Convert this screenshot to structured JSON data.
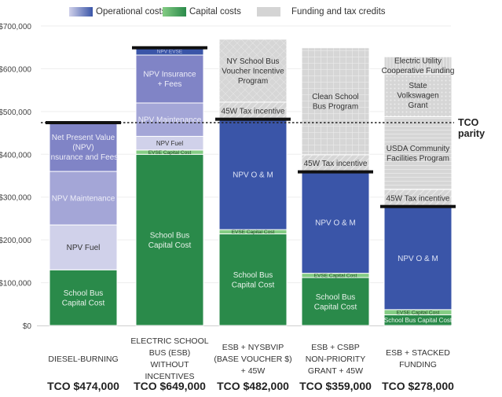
{
  "chart_data": {
    "type": "bar",
    "stacked": true,
    "title": "",
    "xlabel": "",
    "ylabel": "",
    "ylim": [
      0,
      700000
    ],
    "yticks": [
      0,
      100000,
      200000,
      300000,
      400000,
      500000,
      600000,
      700000
    ],
    "ytick_labels": [
      "$0",
      "$100,000",
      "$200,000",
      "$300,000",
      "$400,000",
      "$500,000",
      "$600,000",
      "$700,000"
    ],
    "grid": true,
    "legend": {
      "placement": "top",
      "entries": [
        {
          "label": "Operational costs",
          "color": "#3a55a8"
        },
        {
          "label": "Capital costs",
          "color": "#2a8a4a"
        },
        {
          "label": "Funding and tax credits",
          "color": "#d4d4d4"
        }
      ]
    },
    "tco_parity": {
      "value": 474000,
      "label": "TCO parity"
    },
    "categories": [
      "DIESEL-BURNING",
      "ELECTRIC SCHOOL\nBUS (ESB) WITHOUT\nINCENTIVES",
      "ESB + NYSBVIP\n(BASE VOUCHER $)\n+ 45W",
      "ESB + CSBP\nNON-PRIORITY\nGRANT + 45W",
      "ESB + STACKED\nFUNDING"
    ],
    "tco_labels": [
      "TCO $474,000",
      "TCO $649,000",
      "TCO $482,000",
      "TCO $359,000",
      "TCO $278,000"
    ],
    "tco_values": [
      474000,
      649000,
      482000,
      359000,
      278000
    ],
    "bars": [
      {
        "segments": [
          {
            "label": "School Bus\nCapital Cost",
            "value": 130000,
            "kind": "capital",
            "color": "#2a8a4a",
            "text_color": "#e8f2ea"
          },
          {
            "label": "NPV Fuel",
            "value": 105000,
            "kind": "operational",
            "color": "#d0d1ea",
            "text_color": "#333333"
          },
          {
            "label": "NPV Maintenance",
            "value": 125000,
            "kind": "operational",
            "color": "#a4a6d7",
            "text_color": "#eeeef8"
          },
          {
            "label": "Net Present Value\n(NPV)\nInsurance and Fees",
            "value": 114000,
            "kind": "operational",
            "color": "#8084c6",
            "text_color": "#eeeef8"
          }
        ]
      },
      {
        "segments": [
          {
            "label": "School Bus\nCapital Cost",
            "value": 400000,
            "kind": "capital",
            "color": "#2a8a4a",
            "text_color": "#e8f2ea"
          },
          {
            "label": "EVSE Capital Cost",
            "value": 10000,
            "kind": "capital",
            "color": "#84cc84",
            "text_color": "#1e4a24"
          },
          {
            "label": "NPV Fuel",
            "value": 32000,
            "kind": "operational",
            "color": "#d0d1ea",
            "text_color": "#333333"
          },
          {
            "label": "NPV Maintenance",
            "value": 78000,
            "kind": "operational",
            "color": "#a4a6d7",
            "text_color": "#eeeef8"
          },
          {
            "label": "NPV Insurance\n+ Fees",
            "value": 112000,
            "kind": "operational",
            "color": "#8084c6",
            "text_color": "#eeeef8"
          },
          {
            "label": "NPV EVSE",
            "value": 17000,
            "kind": "operational",
            "color": "#3a55a8",
            "text_color": "#b8c0e0"
          }
        ]
      },
      {
        "segments": [
          {
            "label": "School Bus\nCapital Cost",
            "value": 214000,
            "kind": "capital",
            "color": "#2a8a4a",
            "text_color": "#e8f2ea"
          },
          {
            "label": "EVSE Capital Cost",
            "value": 10000,
            "kind": "capital",
            "color": "#84cc84",
            "text_color": "#1e4a24"
          },
          {
            "label": "NPV O & M",
            "value": 258000,
            "kind": "operational",
            "color": "#3a55a8",
            "text_color": "#dde3f5"
          },
          {
            "label": "45W Tax incentive",
            "value": 40000,
            "kind": "funding",
            "pattern": "diag",
            "color": "#d6d6d6",
            "text_color": "#333333"
          },
          {
            "label": "NY School Bus\nVoucher Incentive\nProgram",
            "value": 147000,
            "kind": "funding",
            "pattern": "cross",
            "color": "#d6d6d6",
            "text_color": "#333333"
          }
        ]
      },
      {
        "segments": [
          {
            "label": "School Bus\nCapital Cost",
            "value": 112000,
            "kind": "capital",
            "color": "#2a8a4a",
            "text_color": "#e8f2ea"
          },
          {
            "label": "EVSE Capital Cost",
            "value": 10000,
            "kind": "capital",
            "color": "#84cc84",
            "text_color": "#1e4a24"
          },
          {
            "label": "NPV O & M",
            "value": 237000,
            "kind": "operational",
            "color": "#3a55a8",
            "text_color": "#dde3f5"
          },
          {
            "label": "45W Tax incentive",
            "value": 40000,
            "kind": "funding",
            "pattern": "diag",
            "color": "#d6d6d6",
            "text_color": "#333333"
          },
          {
            "label": "Clean School\nBus Program",
            "value": 250000,
            "kind": "funding",
            "pattern": "grid",
            "color": "#d6d6d6",
            "text_color": "#333333"
          }
        ]
      },
      {
        "segments": [
          {
            "label": "School Bus Capital Cost",
            "value": 25000,
            "kind": "capital",
            "color": "#2a8a4a",
            "text_color": "#e8f2ea"
          },
          {
            "label": "EVSE Capital Cost",
            "value": 12000,
            "kind": "capital",
            "color": "#84cc84",
            "text_color": "#1e4a24"
          },
          {
            "label": "NPV O & M",
            "value": 241000,
            "kind": "operational",
            "color": "#3a55a8",
            "text_color": "#dde3f5"
          },
          {
            "label": "45W Tax incentive",
            "value": 40000,
            "kind": "funding",
            "pattern": "diag",
            "color": "#d6d6d6",
            "text_color": "#333333"
          },
          {
            "label": "USDA Community\nFacilities Program",
            "value": 170000,
            "kind": "funding",
            "pattern": "hlines",
            "color": "#d6d6d6",
            "text_color": "#333333"
          },
          {
            "label": "State\nVolkswagen\nGrant",
            "value": 100000,
            "kind": "funding",
            "pattern": "dots",
            "color": "#d6d6d6",
            "text_color": "#333333"
          },
          {
            "label": "Electric Utility\nCooperative Funding",
            "value": 40000,
            "kind": "funding",
            "pattern": "vlines",
            "color": "#d6d6d6",
            "text_color": "#333333"
          }
        ]
      }
    ]
  }
}
